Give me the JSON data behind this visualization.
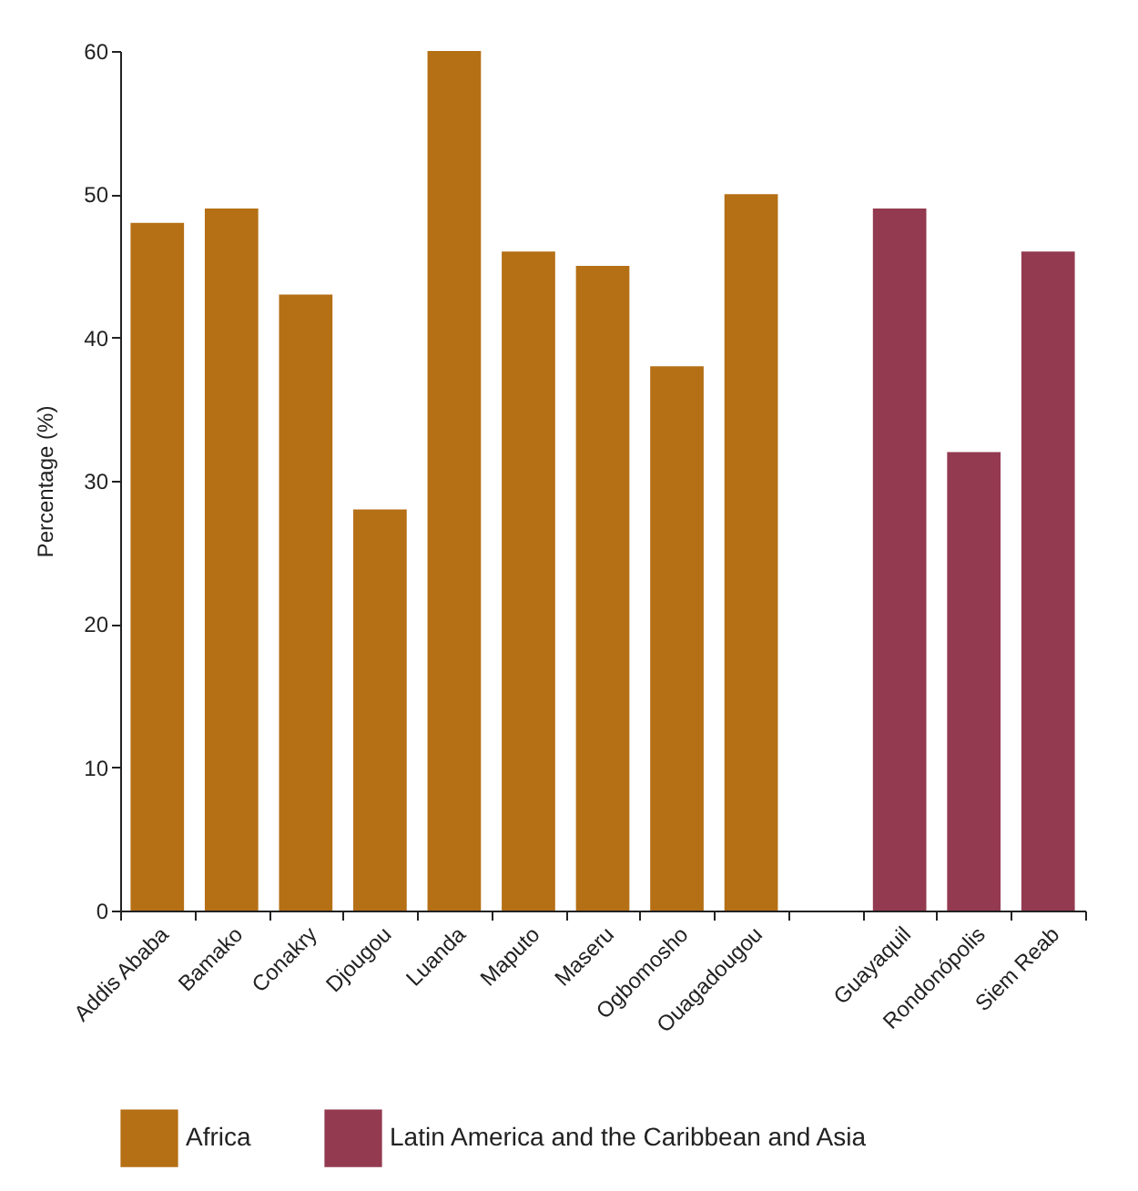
{
  "chart_data": {
    "type": "bar",
    "ylabel": "Percentage (%)",
    "categories": [
      "Addis Ababa",
      "Bamako",
      "Conakry",
      "Djougou",
      "Luanda",
      "Maputo",
      "Maseru",
      "Ogbomosho",
      "Ouagadougou",
      null,
      "Guayaquil",
      "Rondonópolis",
      "Siem Reab"
    ],
    "series": [
      {
        "name": "Africa",
        "color": "#b56f15",
        "values": [
          48,
          49,
          43,
          28,
          60,
          46,
          45,
          38,
          50,
          null,
          null,
          null,
          null
        ]
      },
      {
        "name": "Latin America and the Caribbean and Asia",
        "color": "#933a50",
        "values": [
          null,
          null,
          null,
          null,
          null,
          null,
          null,
          null,
          null,
          null,
          49,
          32,
          46
        ]
      }
    ],
    "ylim": [
      0,
      60
    ],
    "yticks": [
      0,
      10,
      20,
      30,
      40,
      50,
      60
    ],
    "grid": false,
    "legend": "bottom"
  }
}
